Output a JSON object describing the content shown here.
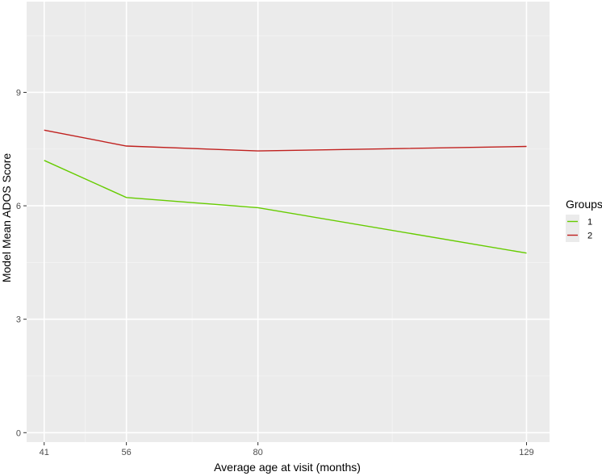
{
  "chart_data": {
    "type": "line",
    "x": [
      41,
      56,
      80,
      129
    ],
    "xticks": [
      41,
      56,
      80,
      129
    ],
    "yticks": [
      0,
      3,
      6,
      9
    ],
    "xlim": [
      37.8,
      133.2
    ],
    "ylim": [
      -0.25,
      11.4
    ],
    "xlabel": "Average age at visit (months)",
    "ylabel": "Model Mean ADOS Score",
    "legend": {
      "title": "Groups",
      "placement": "right"
    },
    "grid": true,
    "series": [
      {
        "name": "1",
        "color": "#66cc00",
        "values": [
          7.2,
          6.22,
          5.95,
          4.75
        ]
      },
      {
        "name": "2",
        "color": "#c0201e",
        "values": [
          8.0,
          7.58,
          7.45,
          7.57
        ]
      }
    ]
  }
}
